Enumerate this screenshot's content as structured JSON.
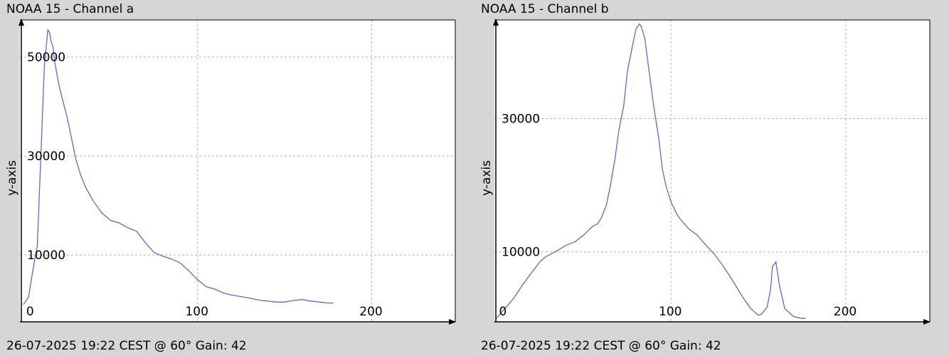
{
  "chart_data": [
    {
      "type": "line",
      "title": "NOAA 15 - Channel a",
      "footer": "26-07-2025 19:22 CEST @ 60° Gain: 42",
      "xlabel": "",
      "ylabel": "y-axis",
      "xlim": [
        -2,
        248
      ],
      "ylim": [
        -3500,
        57500
      ],
      "xticks": [
        0,
        100,
        200
      ],
      "yticks": [
        10000,
        30000,
        50000
      ],
      "grid": true,
      "line_color": "#6666cc",
      "series": [
        {
          "x": [
            0,
            3,
            5,
            8,
            10,
            12,
            14,
            15,
            16,
            17,
            18,
            20,
            22,
            25,
            28,
            30,
            33,
            36,
            40,
            45,
            50,
            55,
            60,
            65,
            70,
            75,
            80,
            85,
            90,
            95,
            100,
            105,
            110,
            115,
            120,
            125,
            130,
            135,
            140,
            145,
            150,
            155,
            160,
            165,
            170,
            175,
            178
          ],
          "y": [
            0,
            1500,
            6000,
            12000,
            30000,
            48000,
            55500,
            55000,
            53000,
            52000,
            49000,
            45000,
            42000,
            38000,
            33000,
            29500,
            26000,
            23500,
            21000,
            18500,
            17000,
            16500,
            15500,
            14800,
            12500,
            10500,
            9800,
            9200,
            8400,
            6800,
            5000,
            3600,
            3100,
            2300,
            1900,
            1600,
            1300,
            900,
            700,
            500,
            500,
            800,
            1000,
            700,
            500,
            300,
            300
          ]
        }
      ]
    },
    {
      "type": "line",
      "title": "NOAA 15 - Channel b",
      "footer": "26-07-2025 19:22 CEST @ 60° Gain: 42",
      "xlabel": "",
      "ylabel": "y-axis",
      "xlim": [
        -1,
        248
      ],
      "ylim": [
        -500,
        44800
      ],
      "xticks": [
        0,
        100,
        200
      ],
      "yticks": [
        10000,
        30000
      ],
      "grid": true,
      "line_color": "#6666cc",
      "series": [
        {
          "x": [
            0,
            5,
            10,
            15,
            20,
            25,
            28,
            30,
            35,
            40,
            45,
            50,
            55,
            58,
            60,
            63,
            65,
            68,
            70,
            73,
            75,
            78,
            80,
            82,
            83,
            85,
            87,
            90,
            93,
            95,
            97,
            100,
            103,
            105,
            110,
            115,
            120,
            125,
            130,
            135,
            140,
            145,
            148,
            150,
            152,
            155,
            157,
            158,
            160,
            162,
            165,
            170,
            175,
            177
          ],
          "y": [
            0,
            1500,
            3000,
            5000,
            6800,
            8500,
            9200,
            9500,
            10200,
            11000,
            11500,
            12500,
            13800,
            14200,
            15000,
            17000,
            19500,
            24000,
            28000,
            32000,
            37000,
            41000,
            43500,
            44200,
            43800,
            42000,
            38000,
            32000,
            27000,
            22500,
            20000,
            17500,
            15800,
            15000,
            13500,
            12500,
            11000,
            9600,
            7800,
            5800,
            3600,
            1700,
            900,
            500,
            700,
            1700,
            4500,
            7800,
            8500,
            5000,
            1500,
            300,
            0,
            0
          ]
        }
      ]
    }
  ]
}
